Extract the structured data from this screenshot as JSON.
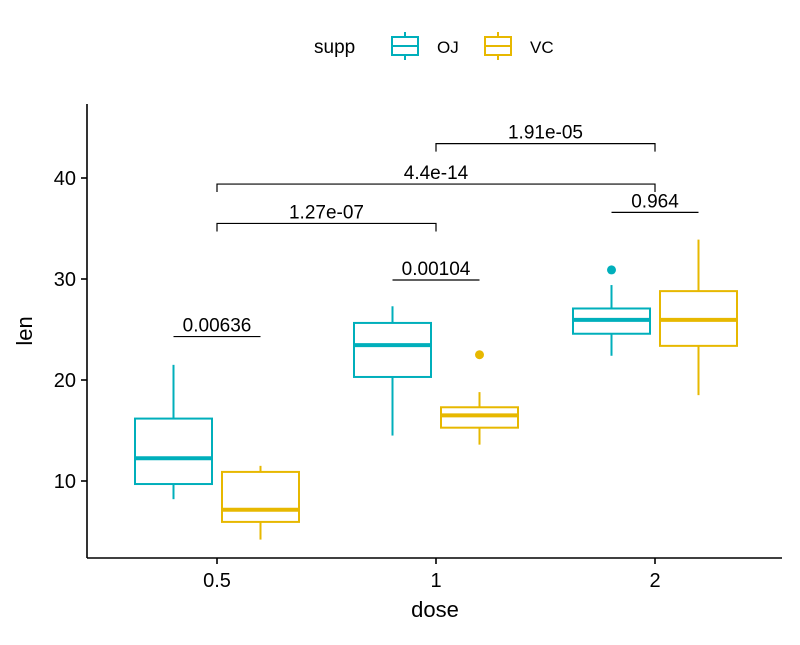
{
  "chart_data": {
    "type": "boxplot",
    "xlabel": "dose",
    "ylabel": "len",
    "categories": [
      "0.5",
      "1",
      "2"
    ],
    "y_ticks": [
      10,
      20,
      30,
      40
    ],
    "ylim": [
      2.4,
      47.2
    ],
    "grid": false,
    "legend": {
      "position": "top",
      "title": "supp",
      "entries": [
        "OJ",
        "VC"
      ]
    },
    "colors": {
      "OJ": "#00AFBB",
      "VC": "#E7B800"
    },
    "series": [
      {
        "name": "OJ",
        "boxes": [
          {
            "dose": "0.5",
            "min": 8.2,
            "q1": 9.7,
            "median": 12.25,
            "q3": 16.18,
            "max": 21.5,
            "outliers": []
          },
          {
            "dose": "1",
            "min": 14.5,
            "q1": 20.3,
            "median": 23.45,
            "q3": 25.65,
            "max": 27.3,
            "outliers": []
          },
          {
            "dose": "2",
            "min": 22.4,
            "q1": 24.58,
            "median": 25.95,
            "q3": 27.08,
            "max": 29.4,
            "outliers": [
              30.9
            ]
          }
        ]
      },
      {
        "name": "VC",
        "boxes": [
          {
            "dose": "0.5",
            "min": 4.2,
            "q1": 5.95,
            "median": 7.15,
            "q3": 10.9,
            "max": 11.5,
            "outliers": []
          },
          {
            "dose": "1",
            "min": 13.6,
            "q1": 15.28,
            "median": 16.5,
            "q3": 17.3,
            "max": 18.8,
            "outliers": [
              22.5
            ]
          },
          {
            "dose": "2",
            "min": 18.5,
            "q1": 23.38,
            "median": 25.95,
            "q3": 28.8,
            "max": 33.9,
            "outliers": []
          }
        ]
      }
    ],
    "annotations": [
      {
        "label": "0.00636",
        "type": "within",
        "dose": "0.5",
        "y": 24.3
      },
      {
        "label": "0.00104",
        "type": "within",
        "dose": "1",
        "y": 29.9
      },
      {
        "label": "0.964",
        "type": "within",
        "dose": "2",
        "y": 36.6
      },
      {
        "label": "1.27e-07",
        "type": "between",
        "from": "0.5",
        "to": "1",
        "y": 35.5
      },
      {
        "label": "4.4e-14",
        "type": "between",
        "from": "0.5",
        "to": "2",
        "y": 39.4
      },
      {
        "label": "1.91e-05",
        "type": "between",
        "from": "1",
        "to": "2",
        "y": 43.4
      }
    ]
  }
}
